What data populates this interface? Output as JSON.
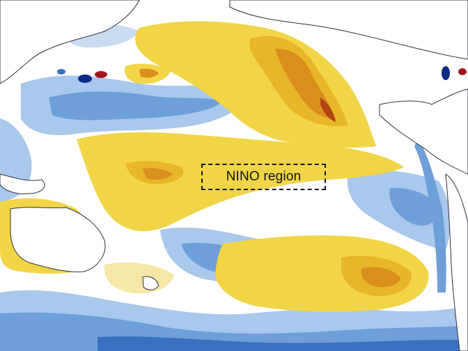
{
  "map": {
    "region_label": "NINO region",
    "colors": {
      "ocean_neutral": "#ffffff",
      "land": "#ffffff",
      "coastline": "#2a2f3a",
      "warm_light": "#f6e7a8",
      "warm": "#f1d547",
      "warm_mid": "#e7b62a",
      "warm_strong": "#d98e1e",
      "warm_extreme": "#b24413",
      "cool_light": "#c9dcf1",
      "cool": "#a8c8ec",
      "cool_mid": "#6f9fd8",
      "cool_strong": "#3b6fbf",
      "cool_extreme": "#0a2a86",
      "hot_spot": "#a3151b"
    }
  }
}
